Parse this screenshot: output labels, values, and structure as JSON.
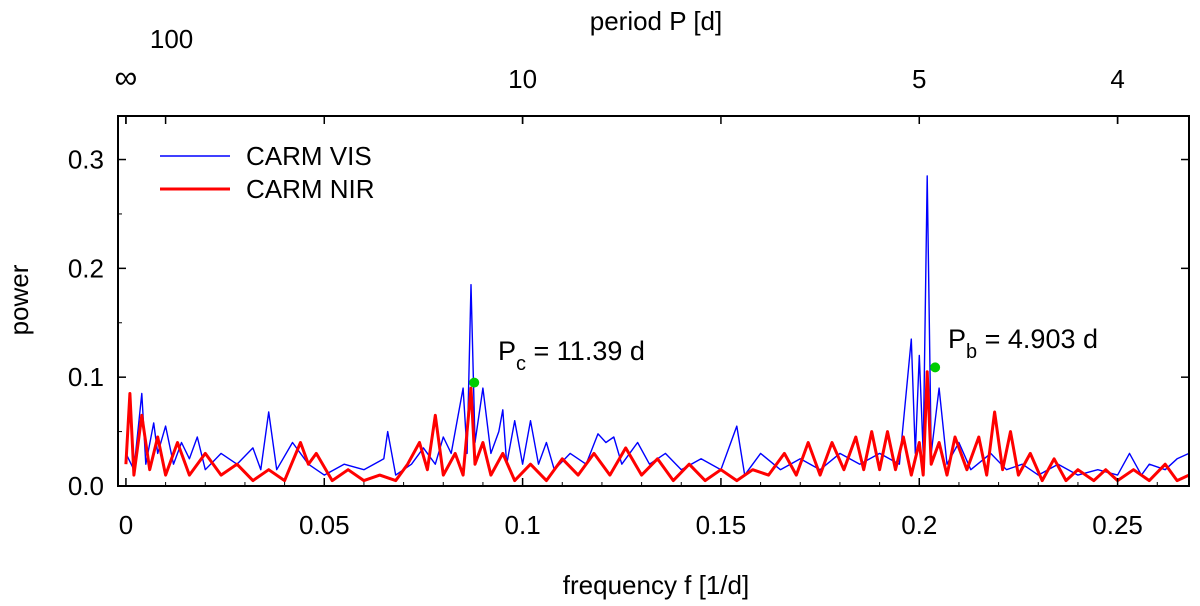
{
  "chart_data": {
    "type": "line",
    "title": "",
    "xlabel": "frequency f [1/d]",
    "ylabel": "power",
    "top_axis_label": "period P [d]",
    "xlim": [
      -0.002,
      0.268
    ],
    "ylim": [
      0,
      0.34
    ],
    "x_ticks": [
      0,
      0.05,
      0.1,
      0.15,
      0.2,
      0.25
    ],
    "x_tick_labels": [
      "0",
      "0.05",
      "0.1",
      "0.15",
      "0.2",
      "0.25"
    ],
    "y_ticks": [
      0,
      0.1,
      0.2,
      0.3
    ],
    "y_tick_labels": [
      "0.0",
      "0.1",
      "0.2",
      "0.3"
    ],
    "top_ticks": [
      {
        "label": "∞",
        "freq": 0.0
      },
      {
        "label": "100",
        "freq": 0.01
      },
      {
        "label": "10",
        "freq": 0.1
      },
      {
        "label": "5",
        "freq": 0.2
      },
      {
        "label": "4",
        "freq": 0.25
      }
    ],
    "legend_position": "top-left",
    "series": [
      {
        "name": "CARM VIS",
        "color": "#0000ff",
        "points": [
          [
            0,
            0.03
          ],
          [
            0.002,
            0.015
          ],
          [
            0.004,
            0.085
          ],
          [
            0.005,
            0.02
          ],
          [
            0.007,
            0.058
          ],
          [
            0.008,
            0.03
          ],
          [
            0.01,
            0.055
          ],
          [
            0.012,
            0.02
          ],
          [
            0.014,
            0.04
          ],
          [
            0.016,
            0.025
          ],
          [
            0.018,
            0.045
          ],
          [
            0.02,
            0.015
          ],
          [
            0.024,
            0.03
          ],
          [
            0.028,
            0.02
          ],
          [
            0.032,
            0.035
          ],
          [
            0.034,
            0.015
          ],
          [
            0.036,
            0.068
          ],
          [
            0.038,
            0.015
          ],
          [
            0.042,
            0.04
          ],
          [
            0.046,
            0.02
          ],
          [
            0.05,
            0.01
          ],
          [
            0.055,
            0.02
          ],
          [
            0.06,
            0.015
          ],
          [
            0.065,
            0.025
          ],
          [
            0.066,
            0.05
          ],
          [
            0.068,
            0.01
          ],
          [
            0.072,
            0.02
          ],
          [
            0.075,
            0.035
          ],
          [
            0.078,
            0.02
          ],
          [
            0.08,
            0.045
          ],
          [
            0.082,
            0.03
          ],
          [
            0.085,
            0.09
          ],
          [
            0.086,
            0.03
          ],
          [
            0.087,
            0.185
          ],
          [
            0.088,
            0.04
          ],
          [
            0.09,
            0.09
          ],
          [
            0.092,
            0.03
          ],
          [
            0.094,
            0.05
          ],
          [
            0.095,
            0.07
          ],
          [
            0.096,
            0.02
          ],
          [
            0.098,
            0.06
          ],
          [
            0.1,
            0.02
          ],
          [
            0.102,
            0.06
          ],
          [
            0.104,
            0.02
          ],
          [
            0.106,
            0.04
          ],
          [
            0.108,
            0.015
          ],
          [
            0.112,
            0.03
          ],
          [
            0.116,
            0.02
          ],
          [
            0.119,
            0.048
          ],
          [
            0.121,
            0.04
          ],
          [
            0.123,
            0.045
          ],
          [
            0.125,
            0.02
          ],
          [
            0.129,
            0.04
          ],
          [
            0.132,
            0.02
          ],
          [
            0.136,
            0.03
          ],
          [
            0.14,
            0.015
          ],
          [
            0.145,
            0.025
          ],
          [
            0.15,
            0.015
          ],
          [
            0.154,
            0.055
          ],
          [
            0.156,
            0.01
          ],
          [
            0.16,
            0.03
          ],
          [
            0.165,
            0.015
          ],
          [
            0.17,
            0.025
          ],
          [
            0.175,
            0.015
          ],
          [
            0.18,
            0.03
          ],
          [
            0.185,
            0.02
          ],
          [
            0.19,
            0.03
          ],
          [
            0.195,
            0.02
          ],
          [
            0.198,
            0.135
          ],
          [
            0.199,
            0.03
          ],
          [
            0.2,
            0.12
          ],
          [
            0.201,
            0.03
          ],
          [
            0.202,
            0.285
          ],
          [
            0.203,
            0.03
          ],
          [
            0.205,
            0.09
          ],
          [
            0.207,
            0.02
          ],
          [
            0.21,
            0.04
          ],
          [
            0.213,
            0.015
          ],
          [
            0.218,
            0.03
          ],
          [
            0.222,
            0.015
          ],
          [
            0.226,
            0.02
          ],
          [
            0.23,
            0.01
          ],
          [
            0.235,
            0.02
          ],
          [
            0.24,
            0.01
          ],
          [
            0.245,
            0.015
          ],
          [
            0.25,
            0.01
          ],
          [
            0.253,
            0.03
          ],
          [
            0.256,
            0.01
          ],
          [
            0.258,
            0.02
          ],
          [
            0.262,
            0.015
          ],
          [
            0.265,
            0.025
          ],
          [
            0.268,
            0.03
          ]
        ]
      },
      {
        "name": "CARM NIR",
        "color": "#ff0000",
        "points": [
          [
            0,
            0.02
          ],
          [
            0.001,
            0.085
          ],
          [
            0.002,
            0.01
          ],
          [
            0.004,
            0.065
          ],
          [
            0.006,
            0.015
          ],
          [
            0.008,
            0.045
          ],
          [
            0.01,
            0.01
          ],
          [
            0.013,
            0.04
          ],
          [
            0.016,
            0.01
          ],
          [
            0.02,
            0.03
          ],
          [
            0.024,
            0.01
          ],
          [
            0.028,
            0.02
          ],
          [
            0.032,
            0.005
          ],
          [
            0.036,
            0.015
          ],
          [
            0.04,
            0.005
          ],
          [
            0.044,
            0.04
          ],
          [
            0.046,
            0.02
          ],
          [
            0.048,
            0.03
          ],
          [
            0.052,
            0.005
          ],
          [
            0.056,
            0.015
          ],
          [
            0.06,
            0.005
          ],
          [
            0.064,
            0.01
          ],
          [
            0.068,
            0.005
          ],
          [
            0.071,
            0.02
          ],
          [
            0.074,
            0.04
          ],
          [
            0.076,
            0.015
          ],
          [
            0.078,
            0.065
          ],
          [
            0.08,
            0.01
          ],
          [
            0.083,
            0.03
          ],
          [
            0.085,
            0.01
          ],
          [
            0.087,
            0.09
          ],
          [
            0.088,
            0.02
          ],
          [
            0.09,
            0.04
          ],
          [
            0.092,
            0.01
          ],
          [
            0.095,
            0.03
          ],
          [
            0.098,
            0.005
          ],
          [
            0.102,
            0.02
          ],
          [
            0.106,
            0.005
          ],
          [
            0.11,
            0.025
          ],
          [
            0.114,
            0.01
          ],
          [
            0.118,
            0.03
          ],
          [
            0.122,
            0.01
          ],
          [
            0.126,
            0.035
          ],
          [
            0.13,
            0.01
          ],
          [
            0.134,
            0.025
          ],
          [
            0.138,
            0.005
          ],
          [
            0.142,
            0.02
          ],
          [
            0.146,
            0.005
          ],
          [
            0.15,
            0.015
          ],
          [
            0.154,
            0.005
          ],
          [
            0.158,
            0.015
          ],
          [
            0.162,
            0.01
          ],
          [
            0.166,
            0.03
          ],
          [
            0.169,
            0.01
          ],
          [
            0.172,
            0.04
          ],
          [
            0.175,
            0.01
          ],
          [
            0.178,
            0.04
          ],
          [
            0.181,
            0.015
          ],
          [
            0.184,
            0.045
          ],
          [
            0.186,
            0.015
          ],
          [
            0.188,
            0.05
          ],
          [
            0.19,
            0.015
          ],
          [
            0.192,
            0.05
          ],
          [
            0.194,
            0.015
          ],
          [
            0.196,
            0.045
          ],
          [
            0.198,
            0.01
          ],
          [
            0.2,
            0.04
          ],
          [
            0.201,
            0.01
          ],
          [
            0.202,
            0.105
          ],
          [
            0.203,
            0.02
          ],
          [
            0.205,
            0.04
          ],
          [
            0.207,
            0.01
          ],
          [
            0.209,
            0.045
          ],
          [
            0.212,
            0.015
          ],
          [
            0.215,
            0.045
          ],
          [
            0.217,
            0.01
          ],
          [
            0.219,
            0.068
          ],
          [
            0.221,
            0.015
          ],
          [
            0.223,
            0.05
          ],
          [
            0.225,
            0.01
          ],
          [
            0.228,
            0.03
          ],
          [
            0.231,
            0.005
          ],
          [
            0.234,
            0.025
          ],
          [
            0.237,
            0.005
          ],
          [
            0.24,
            0.015
          ],
          [
            0.244,
            0.005
          ],
          [
            0.247,
            0.015
          ],
          [
            0.25,
            0.005
          ],
          [
            0.254,
            0.015
          ],
          [
            0.258,
            0.005
          ],
          [
            0.262,
            0.02
          ],
          [
            0.265,
            0.005
          ],
          [
            0.268,
            0.01
          ]
        ]
      }
    ],
    "markers": [
      {
        "x": 0.0878,
        "y": 0.095,
        "color": "#00cc00",
        "label_main": "P",
        "label_sub": "c",
        "label_rest": " = 11.39 d"
      },
      {
        "x": 0.204,
        "y": 0.109,
        "color": "#00cc00",
        "label_main": "P",
        "label_sub": "b",
        "label_rest": " = 4.903 d"
      }
    ]
  }
}
